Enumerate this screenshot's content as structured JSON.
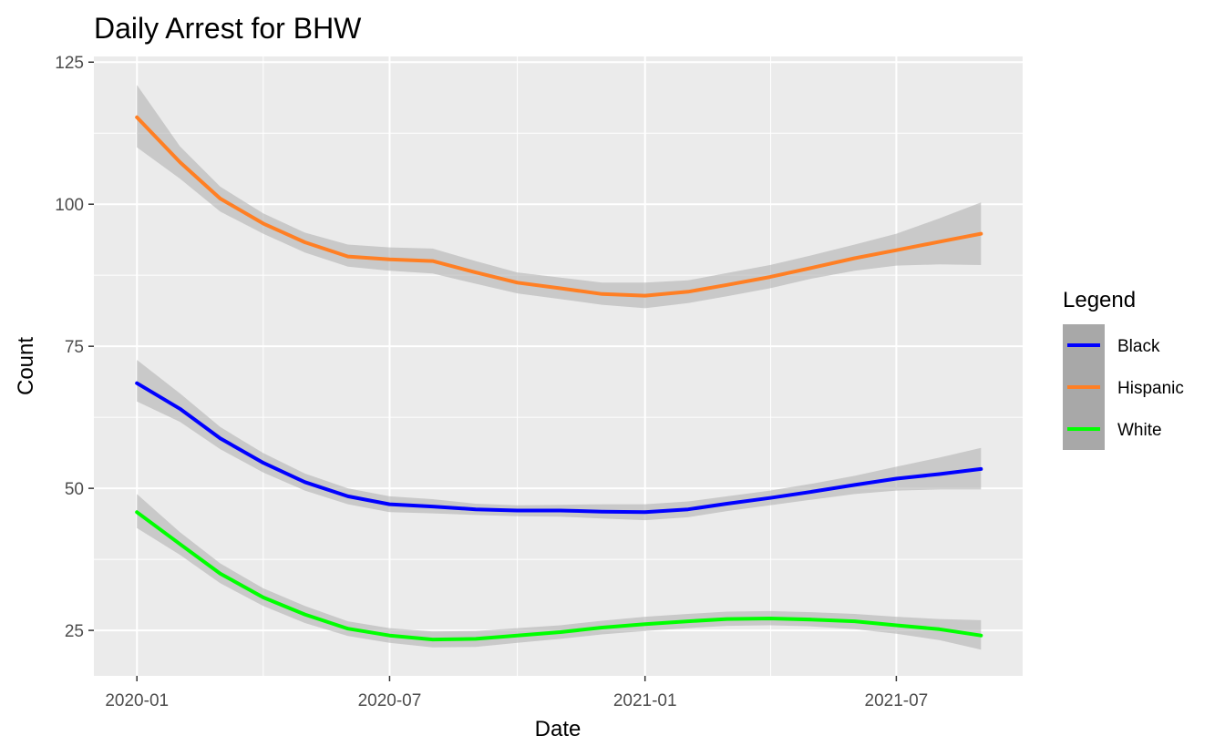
{
  "chart_data": {
    "type": "line",
    "title": "Daily Arrest for BHW",
    "xlabel": "Date",
    "ylabel": "Count",
    "xlim": [
      "2019-12-01",
      "2021-09-30"
    ],
    "ylim": [
      17,
      126
    ],
    "x_ticks": [
      {
        "date": "2020-01-01",
        "label": "2020-01"
      },
      {
        "date": "2020-07-01",
        "label": "2020-07"
      },
      {
        "date": "2021-01-01",
        "label": "2021-01"
      },
      {
        "date": "2021-07-01",
        "label": "2021-07"
      }
    ],
    "y_ticks": [
      25,
      50,
      75,
      100,
      125
    ],
    "grid": true,
    "legend": {
      "title": "Legend",
      "position": "right"
    },
    "colors": {
      "panel": "#ebebeb",
      "grid": "#ffffff",
      "ribbon": "#b3b3b3",
      "legend_key": "#a8a8a8"
    },
    "series": [
      {
        "name": "Black",
        "color": "#0000ff",
        "x": [
          "2020-01-01",
          "2020-02-01",
          "2020-03-01",
          "2020-04-01",
          "2020-05-01",
          "2020-06-01",
          "2020-07-01",
          "2020-08-01",
          "2020-09-01",
          "2020-10-01",
          "2020-11-01",
          "2020-12-01",
          "2021-01-01",
          "2021-02-01",
          "2021-03-01",
          "2021-04-01",
          "2021-05-01",
          "2021-06-01",
          "2021-07-01",
          "2021-08-01",
          "2021-08-31"
        ],
        "y": [
          68.5,
          64.0,
          58.8,
          54.5,
          51.1,
          48.6,
          47.2,
          46.8,
          46.3,
          46.1,
          46.1,
          45.9,
          45.8,
          46.3,
          47.3,
          48.3,
          49.4,
          50.6,
          51.7,
          52.5,
          53.4
        ],
        "lower": [
          65.3,
          61.7,
          56.9,
          52.8,
          49.6,
          47.2,
          45.8,
          45.6,
          45.3,
          45.1,
          45.0,
          44.7,
          44.4,
          44.9,
          46.0,
          47.0,
          48.0,
          49.0,
          49.6,
          49.8,
          49.8
        ],
        "upper": [
          72.6,
          66.7,
          60.8,
          56.2,
          52.6,
          50.0,
          48.6,
          48.1,
          47.3,
          47.0,
          47.1,
          47.2,
          47.2,
          47.7,
          48.6,
          49.6,
          50.8,
          52.2,
          53.8,
          55.4,
          57.1
        ]
      },
      {
        "name": "Hispanic",
        "color": "#ff7f24",
        "x": [
          "2020-01-01",
          "2020-02-01",
          "2020-03-01",
          "2020-04-01",
          "2020-05-01",
          "2020-06-01",
          "2020-07-01",
          "2020-08-01",
          "2020-09-01",
          "2020-10-01",
          "2020-11-01",
          "2020-12-01",
          "2021-01-01",
          "2021-02-01",
          "2021-03-01",
          "2021-04-01",
          "2021-05-01",
          "2021-06-01",
          "2021-07-01",
          "2021-08-01",
          "2021-08-31"
        ],
        "y": [
          115.3,
          107.4,
          101.0,
          96.6,
          93.3,
          90.8,
          90.3,
          90.0,
          88.0,
          86.2,
          85.2,
          84.2,
          83.9,
          84.6,
          85.8,
          87.2,
          88.8,
          90.5,
          91.9,
          93.4,
          94.8
        ],
        "lower": [
          110.0,
          104.5,
          98.7,
          94.8,
          91.5,
          89.0,
          88.3,
          87.8,
          86.0,
          84.3,
          83.3,
          82.3,
          81.7,
          82.6,
          83.8,
          85.2,
          86.9,
          88.3,
          89.2,
          89.4,
          89.3
        ],
        "upper": [
          121.0,
          110.2,
          103.1,
          98.4,
          95.0,
          92.9,
          92.4,
          92.2,
          90.0,
          88.0,
          87.1,
          86.2,
          86.2,
          86.6,
          87.9,
          89.3,
          91.0,
          92.9,
          94.8,
          97.5,
          100.3
        ]
      },
      {
        "name": "White",
        "color": "#00ff00",
        "x": [
          "2020-01-01",
          "2020-02-01",
          "2020-03-01",
          "2020-04-01",
          "2020-05-01",
          "2020-06-01",
          "2020-07-01",
          "2020-08-01",
          "2020-09-01",
          "2020-10-01",
          "2020-11-01",
          "2020-12-01",
          "2021-01-01",
          "2021-02-01",
          "2021-03-01",
          "2021-04-01",
          "2021-05-01",
          "2021-06-01",
          "2021-07-01",
          "2021-08-01",
          "2021-08-31"
        ],
        "y": [
          45.8,
          40.2,
          35.0,
          30.8,
          27.8,
          25.3,
          24.1,
          23.4,
          23.5,
          24.1,
          24.7,
          25.5,
          26.1,
          26.6,
          27.0,
          27.1,
          26.9,
          26.6,
          25.9,
          25.2,
          24.1
        ],
        "lower": [
          43.0,
          38.3,
          33.3,
          29.3,
          26.3,
          24.0,
          22.8,
          22.0,
          22.1,
          22.8,
          23.5,
          24.3,
          24.9,
          25.4,
          25.8,
          25.9,
          25.7,
          25.2,
          24.4,
          23.3,
          21.6
        ],
        "upper": [
          49.0,
          42.3,
          36.8,
          32.4,
          29.3,
          26.6,
          25.4,
          24.8,
          24.9,
          25.4,
          25.9,
          26.7,
          27.4,
          27.9,
          28.3,
          28.4,
          28.2,
          27.9,
          27.4,
          27.0,
          26.8
        ]
      }
    ]
  }
}
